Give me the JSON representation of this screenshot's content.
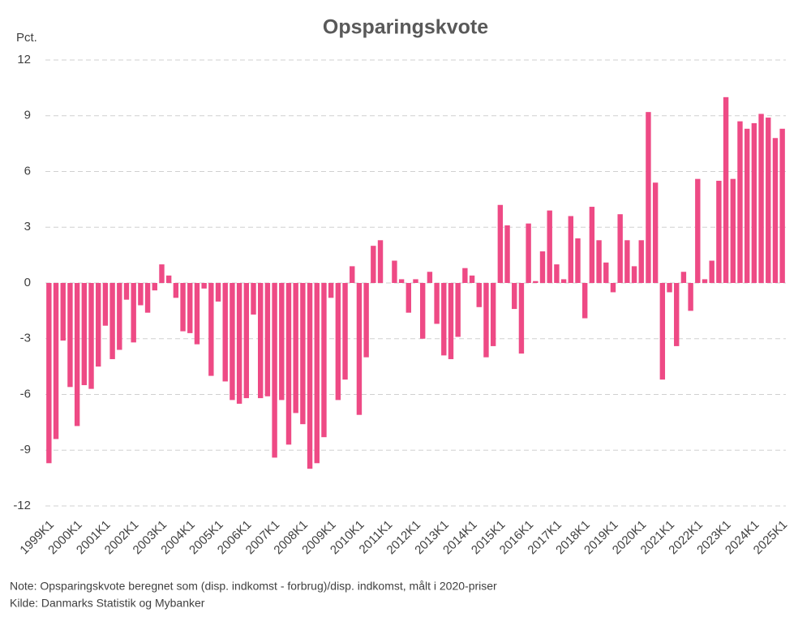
{
  "chart_data": {
    "type": "bar",
    "title": "Opsparingskvote",
    "y_label": "Pct.",
    "note": "Note: Opsparingskvote beregnet som (disp. indkomst - forbrug)/disp. indkomst, målt i 2020-priser",
    "source": "Kilde: Danmarks Statistik og Mybanker",
    "color": "#ee4a85",
    "grid": true,
    "ylim": [
      -12,
      12
    ],
    "yticks": [
      -12,
      -9,
      -6,
      -3,
      0,
      3,
      6,
      9,
      12
    ],
    "categories": [
      "1999K1",
      null,
      null,
      null,
      "2000K1",
      null,
      null,
      null,
      "2001K1",
      null,
      null,
      null,
      "2002K1",
      null,
      null,
      null,
      "2003K1",
      null,
      null,
      null,
      "2004K1",
      null,
      null,
      null,
      "2005K1",
      null,
      null,
      null,
      "2006K1",
      null,
      null,
      null,
      "2007K1",
      null,
      null,
      null,
      "2008K1",
      null,
      null,
      null,
      "2009K1",
      null,
      null,
      null,
      "2010K1",
      null,
      null,
      null,
      "2011K1",
      null,
      null,
      null,
      "2012K1",
      null,
      null,
      null,
      "2013K1",
      null,
      null,
      null,
      "2014K1",
      null,
      null,
      null,
      "2015K1",
      null,
      null,
      null,
      "2016K1",
      null,
      null,
      null,
      "2017K1",
      null,
      null,
      null,
      "2018K1",
      null,
      null,
      null,
      "2019K1",
      null,
      null,
      null,
      "2020K1",
      null,
      null,
      null,
      "2021K1",
      null,
      null,
      null,
      "2022K1",
      null,
      null,
      null,
      "2023K1",
      null,
      null,
      null,
      "2024K1",
      null,
      null,
      null,
      "2025K1"
    ],
    "values": [
      -9.7,
      -8.4,
      -3.1,
      -5.6,
      -7.7,
      -5.5,
      -5.7,
      -4.5,
      -2.3,
      -4.1,
      -3.6,
      -0.9,
      -3.2,
      -1.2,
      -1.6,
      -0.4,
      1.0,
      0.4,
      -0.8,
      -2.6,
      -2.7,
      -3.3,
      -0.3,
      -5.0,
      -1.0,
      -5.3,
      -6.3,
      -6.5,
      -6.2,
      -1.7,
      -6.2,
      -6.1,
      -9.4,
      -6.3,
      -8.7,
      -7.0,
      -7.6,
      -10.0,
      -9.7,
      -8.3,
      -0.8,
      -6.3,
      -5.2,
      0.9,
      -7.1,
      -4.0,
      2.0,
      2.3,
      0.0,
      1.2,
      0.2,
      -1.6,
      0.2,
      -3.0,
      0.6,
      -2.2,
      -3.9,
      -4.1,
      -2.9,
      0.8,
      0.4,
      -1.3,
      -4.0,
      -3.4,
      4.2,
      3.1,
      -1.4,
      -3.8,
      3.2,
      0.1,
      1.7,
      3.9,
      1.0,
      0.2,
      3.6,
      2.4,
      -1.9,
      4.1,
      2.3,
      1.1,
      -0.5,
      3.7,
      2.3,
      0.9,
      2.3,
      9.2,
      5.4,
      -5.2,
      -0.5,
      -3.4,
      0.6,
      -1.5,
      5.6,
      0.2,
      1.2,
      5.5,
      10.0,
      5.6,
      8.7,
      8.3,
      8.6,
      9.1,
      8.9,
      7.8,
      8.3
    ]
  }
}
